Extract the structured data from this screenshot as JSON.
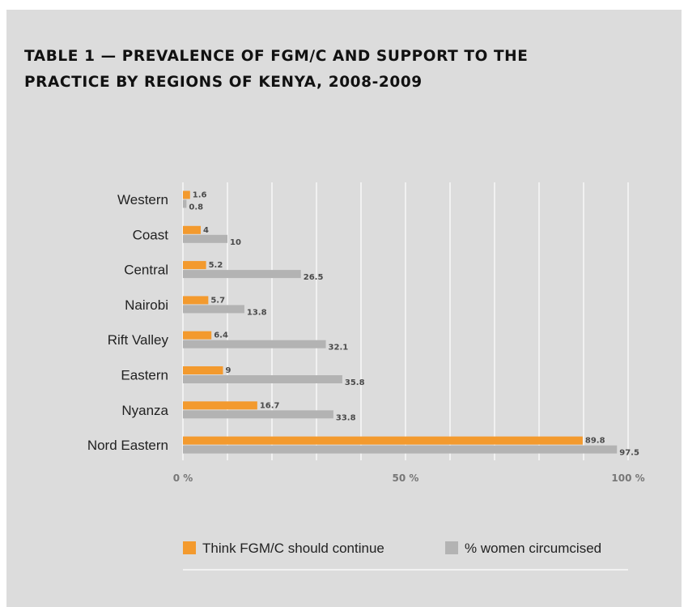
{
  "chart_data": {
    "type": "bar",
    "orientation": "horizontal",
    "title": "TABLE 1 — PREVALENCE OF FGM/C AND SUPPORT TO THE PRACTICE BY REGIONS OF KENYA, 2008-2009",
    "categories": [
      "Western",
      "Coast",
      "Central",
      "Nairobi",
      "Rift Valley",
      "Eastern",
      "Nyanza",
      "Nord Eastern"
    ],
    "series": [
      {
        "name": "Think FGM/C should continue",
        "color": "#f39a2e",
        "values": [
          1.6,
          4,
          5.2,
          5.7,
          6.4,
          9,
          16.7,
          89.8
        ]
      },
      {
        "name": "% women circumcised",
        "color": "#b3b3b3",
        "values": [
          0.8,
          10,
          26.5,
          13.8,
          32.1,
          35.8,
          33.8,
          97.5
        ]
      }
    ],
    "xlim": [
      0,
      100
    ],
    "xticks": [
      0,
      50,
      100
    ],
    "xtick_labels": [
      "0 %",
      "50 %",
      "100 %"
    ],
    "grid": true,
    "legend": "bottom",
    "xlabel": "",
    "ylabel": ""
  }
}
